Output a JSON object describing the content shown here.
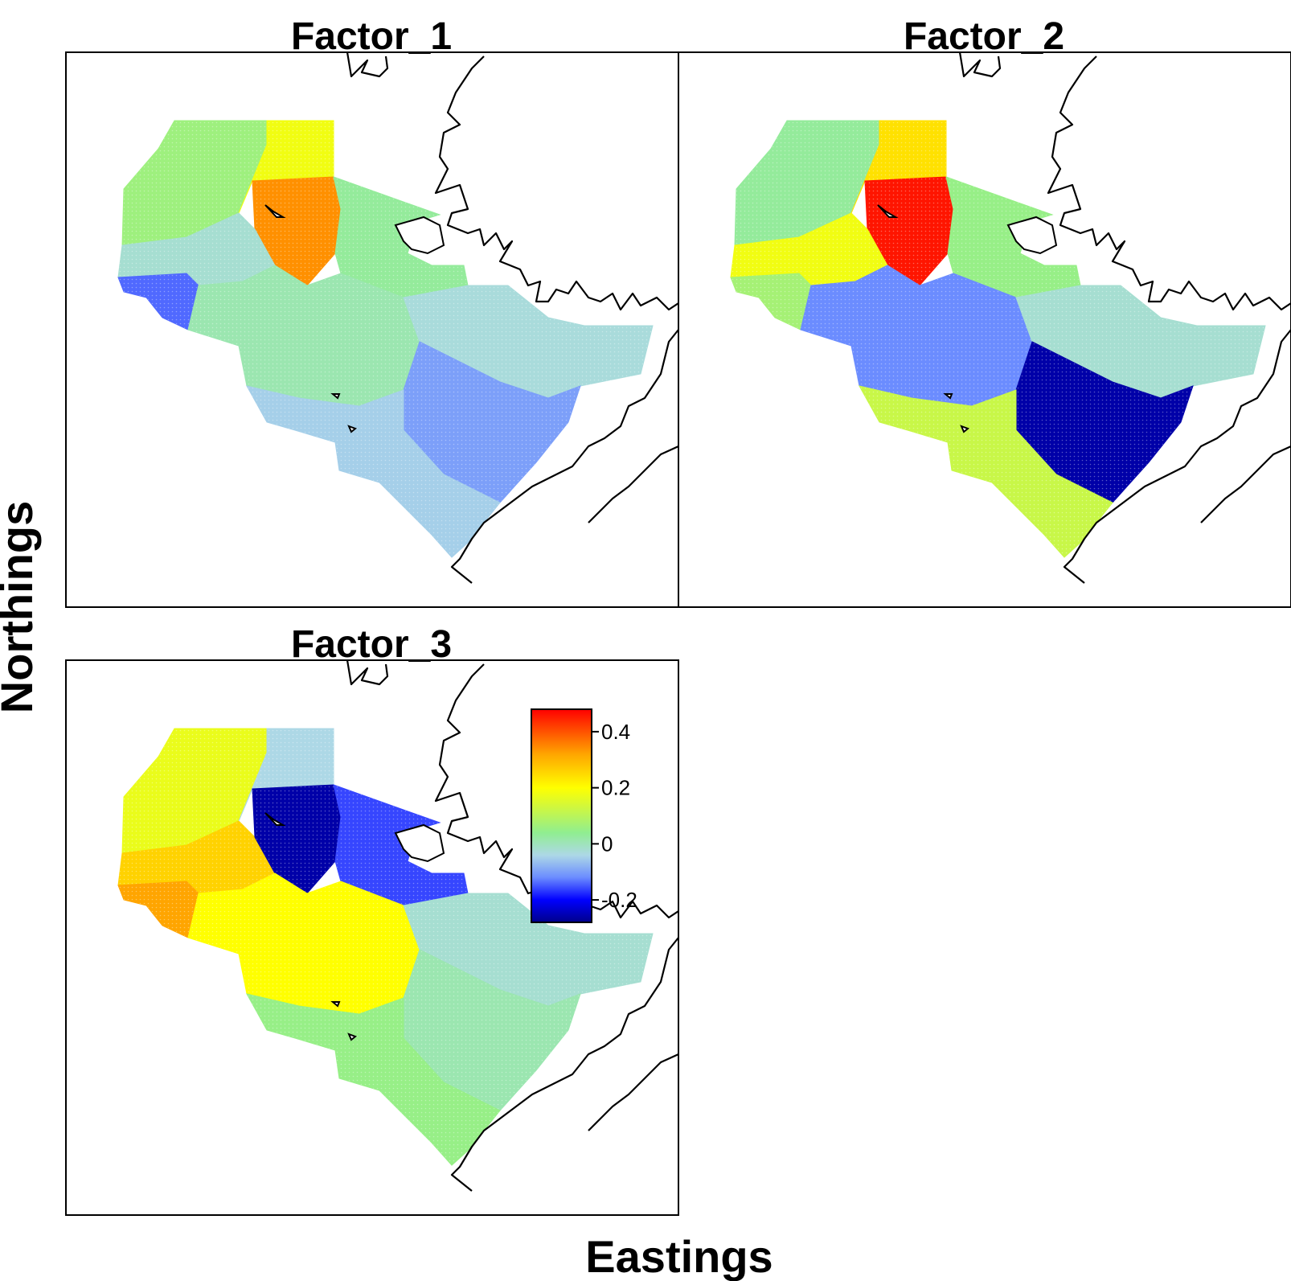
{
  "axes": {
    "xlabel": "Eastings",
    "ylabel": "Northings"
  },
  "panels": [
    {
      "title": "Factor_1"
    },
    {
      "title": "Factor_2"
    },
    {
      "title": "Factor_3"
    }
  ],
  "legend": {
    "ticks": [
      {
        "value": 0.4,
        "label": "0.4"
      },
      {
        "value": 0.2,
        "label": "0.2"
      },
      {
        "value": 0,
        "label": "0"
      },
      {
        "value": -0.2,
        "label": "-0.2"
      }
    ],
    "range": [
      -0.28,
      0.48
    ],
    "color_stops": [
      {
        "value": -0.28,
        "color": "#00008b"
      },
      {
        "value": -0.2,
        "color": "#0000ff"
      },
      {
        "value": -0.12,
        "color": "#6b8cff"
      },
      {
        "value": -0.04,
        "color": "#add8e6"
      },
      {
        "value": 0.04,
        "color": "#90ee90"
      },
      {
        "value": 0.2,
        "color": "#ffff00"
      },
      {
        "value": 0.32,
        "color": "#ffa500"
      },
      {
        "value": 0.48,
        "color": "#ff0000"
      }
    ]
  },
  "map_values": {
    "Factor_1": [
      {
        "region": "northwest",
        "value": 0.06
      },
      {
        "region": "north-center",
        "value": 0.18
      },
      {
        "region": "hotspot",
        "value": 0.34
      },
      {
        "region": "north-east",
        "value": 0.03
      },
      {
        "region": "west",
        "value": -0.02
      },
      {
        "region": "southwest-tip",
        "value": -0.14
      },
      {
        "region": "center",
        "value": 0.01
      },
      {
        "region": "east",
        "value": -0.03
      },
      {
        "region": "southeast",
        "value": -0.1
      },
      {
        "region": "south",
        "value": -0.05
      }
    ],
    "Factor_2": [
      {
        "region": "northwest",
        "value": 0.03
      },
      {
        "region": "north-center",
        "value": 0.24
      },
      {
        "region": "hotspot",
        "value": 0.46
      },
      {
        "region": "north-east",
        "value": 0.05
      },
      {
        "region": "west",
        "value": 0.18
      },
      {
        "region": "southwest-tip",
        "value": 0.07
      },
      {
        "region": "center",
        "value": -0.12
      },
      {
        "region": "east",
        "value": -0.02
      },
      {
        "region": "southeast",
        "value": -0.26
      },
      {
        "region": "south",
        "value": 0.12
      }
    ],
    "Factor_3": [
      {
        "region": "northwest",
        "value": 0.17
      },
      {
        "region": "west",
        "value": 0.26
      },
      {
        "region": "southwest-tip",
        "value": 0.32
      },
      {
        "region": "north-center",
        "value": -0.04
      },
      {
        "region": "hotspot",
        "value": -0.26
      },
      {
        "region": "north-east",
        "value": -0.16
      },
      {
        "region": "center",
        "value": 0.2
      },
      {
        "region": "east",
        "value": -0.02
      },
      {
        "region": "southeast",
        "value": 0.01
      },
      {
        "region": "south",
        "value": 0.05
      }
    ]
  },
  "colors": {
    "frame": "#000000",
    "coastline": "#000000",
    "background": "#ffffff"
  }
}
